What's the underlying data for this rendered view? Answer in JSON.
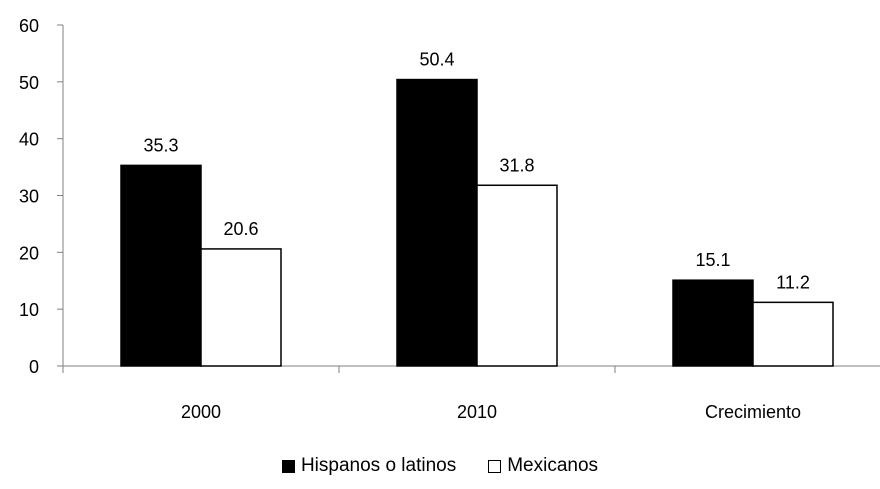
{
  "chart_data": {
    "type": "bar",
    "title": "",
    "xlabel": "",
    "ylabel": "",
    "categories": [
      "2000",
      "2010",
      "Crecimiento"
    ],
    "series": [
      {
        "name": "Hispanos o latinos",
        "values": [
          35.3,
          50.4,
          15.1
        ],
        "labels": [
          "35.3",
          "50.4",
          "15.1"
        ],
        "color": "#000000"
      },
      {
        "name": "Mexicanos",
        "values": [
          20.6,
          31.8,
          11.2
        ],
        "labels": [
          "20.6",
          "31.8",
          "11.2"
        ],
        "color": "#ffffff"
      }
    ],
    "ylim": [
      0,
      60
    ],
    "yticks": [
      0,
      10,
      20,
      30,
      40,
      50,
      60
    ],
    "grid": false,
    "legend_position": "bottom-center"
  }
}
